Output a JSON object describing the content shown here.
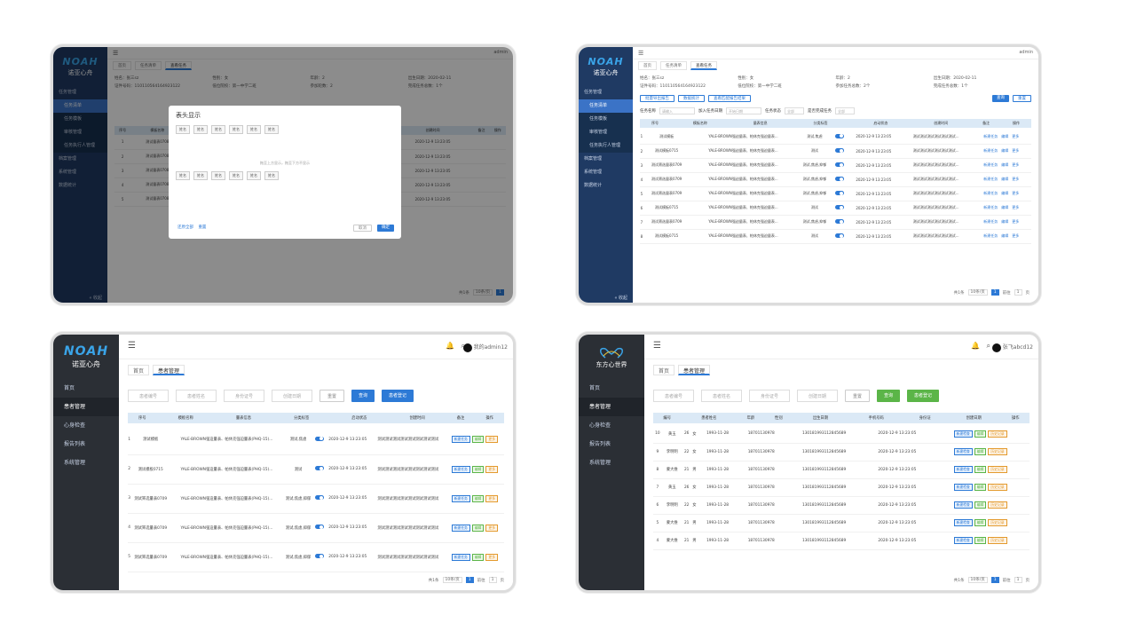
{
  "p1": {
    "brand": "NOAH",
    "brand_cn": "诺亚心舟",
    "menu": [
      "任务管理",
      "任务清单",
      "任务模板",
      "审核管理",
      "任务执行人管理",
      "档案管理",
      "系统管理",
      "数据统计"
    ],
    "collapse": "« 收起",
    "user": "admin",
    "tabs": [
      "首页",
      "任务清单",
      "查看任务"
    ],
    "info": [
      "姓名：张三sz",
      "性别：女",
      "年龄：2",
      "出生日期：2020-02-11",
      "证件类型：中国居民身份证",
      "证件号码：110110564164923122",
      "低位院校：第一中学二班",
      "参加轮数：2",
      "完成任务总数：1个",
      ""
    ],
    "dialog_title": "表头显示",
    "chip": "姓名",
    "hint": "拖至上方显示，拖至下方不显示",
    "dialog_left": [
      "还原全部",
      "重置"
    ],
    "dialog_cancel": "取消",
    "dialog_ok": "确定",
    "cols": [
      "序号",
      "模板名称",
      "量表信息",
      "分类标签",
      "启动状态",
      "创建时间",
      "备注",
      "操作"
    ],
    "row_tmpl": "测试量表0708",
    "scale": "YALE-BROWN强迫量表、帕休克强迫...",
    "tag": "测试",
    "date": "2020-12-9 13:23:05",
    "pager": [
      "共1条",
      "10条/页",
      "前往",
      "1",
      "页"
    ]
  },
  "p2": {
    "user": "admin",
    "tabs": [
      "首页",
      "任务清单",
      "查看任务"
    ],
    "info": [
      "姓名：张三sz",
      "性别：女",
      "年龄：2",
      "出生日期：2020-02-11",
      "证件类型：身份证",
      "证件号码：110110564164923122",
      "低位院校：第一中学二班",
      "参加任务总数：2个",
      "完成任务总数：1个",
      ""
    ],
    "actions": [
      "批量导出报告",
      "数据统计",
      "查看匹配报告结果"
    ],
    "filter_labels": [
      "任务名称",
      "加入任务日期",
      "加入任务日期",
      "任务状态",
      "是否完成任务"
    ],
    "filter_ph": [
      "请输入",
      "开始日期",
      "开始日期",
      "全部",
      "全部"
    ],
    "query": "查询",
    "reset": "重置",
    "cols": [
      "序号",
      "模板名称",
      "量表信息",
      "分类标签",
      "启动状态",
      "创建时间",
      "备注",
      "操作"
    ],
    "rows": [
      {
        "n": "1",
        "name": "测试模板",
        "tag": "测试,焦虑"
      },
      {
        "n": "2",
        "name": "测试模板0715",
        "tag": "测试"
      },
      {
        "n": "3",
        "name": "测试筛选量表0709",
        "tag": "测试,焦虑,抑郁"
      },
      {
        "n": "4",
        "name": "测试筛选量表0709",
        "tag": "测试,焦虑,抑郁"
      },
      {
        "n": "5",
        "name": "测试筛选量表0709",
        "tag": "测试,焦虑,抑郁"
      },
      {
        "n": "6",
        "name": "测试模板0715",
        "tag": "测试"
      },
      {
        "n": "7",
        "name": "测试筛选量表0709",
        "tag": "测试,焦虑,抑郁"
      },
      {
        "n": "8",
        "name": "测试模板0715",
        "tag": "测试"
      }
    ],
    "scale": "YALE-BROWN强迫量表、帕休克强迫量表...",
    "date": "2020-12-9 13:23:05",
    "remark": "测试测试测试测试测试测试...",
    "ops": [
      "新建任务",
      "编辑",
      "更多"
    ],
    "pager": [
      "共1条",
      "10条/页",
      "前往",
      "1",
      "页"
    ],
    "collapse": "« 收起"
  },
  "p3": {
    "brand": "NOAH",
    "brand_cn": "诺亚心舟",
    "menu": [
      "首页",
      "患者管理",
      "心身检查",
      "报告列表",
      "系统管理"
    ],
    "user": "我的admin12",
    "tabs": [
      "首页",
      "患者管理"
    ],
    "filters": [
      "患者编号",
      "患者姓名",
      "身份证号",
      "创建日期"
    ],
    "reset": "重置",
    "query": "查询",
    "register": "患者登记",
    "cols": [
      "序号",
      "模板名称",
      "量表信息",
      "分类标签",
      "启动状态",
      "创建时间",
      "备注",
      "操作"
    ],
    "rows": [
      {
        "n": "1",
        "name": "测试模板",
        "tag": "测试,焦虑"
      },
      {
        "n": "2",
        "name": "测试模板0715",
        "tag": "测试"
      },
      {
        "n": "3",
        "name": "测试筛选量表0709",
        "tag": "测试,焦虑,抑郁"
      },
      {
        "n": "4",
        "name": "测试筛选量表0709",
        "tag": "测试,焦虑,抑郁"
      },
      {
        "n": "5",
        "name": "测试筛选量表0709",
        "tag": "测试,焦虑,抑郁"
      }
    ],
    "scale": "YALE-BROWN强迫量表、帕休克强迫量表(PHQ-15)...",
    "date": "2020-12-9 13:23:05",
    "remark": "测试测试测试测试测试测试测试测试",
    "ops": [
      "新建任务",
      "编辑",
      "更多"
    ],
    "pager": [
      "共1条",
      "10条/页",
      "前往",
      "1",
      "页"
    ]
  },
  "p4": {
    "brand_cn": "东方心世界",
    "menu": [
      "首页",
      "患者管理",
      "心身检查",
      "报告列表",
      "系统管理"
    ],
    "user": "张飞abcd12",
    "tabs": [
      "首页",
      "患者管理"
    ],
    "filters": [
      "患者编号",
      "患者姓名",
      "身份证号",
      "创建日期"
    ],
    "reset": "重置",
    "query": "查询",
    "register": "患者登记",
    "cols": [
      "编号",
      "患者姓名",
      "年龄",
      "性别",
      "出生日期",
      "手机号码",
      "身份证",
      "创建日期",
      "操作"
    ],
    "rows": [
      {
        "n": "10",
        "name": "黄玉",
        "age": "26",
        "sex": "女"
      },
      {
        "n": "9",
        "name": "李明明",
        "age": "22",
        "sex": "女"
      },
      {
        "n": "8",
        "name": "蒙大维",
        "age": "21",
        "sex": "男"
      },
      {
        "n": "7",
        "name": "黄玉",
        "age": "26",
        "sex": "女"
      },
      {
        "n": "6",
        "name": "李明明",
        "age": "22",
        "sex": "女"
      },
      {
        "n": "5",
        "name": "蒙大维",
        "age": "21",
        "sex": "男"
      },
      {
        "n": "4",
        "name": "蒙大维",
        "age": "21",
        "sex": "男"
      }
    ],
    "birth": "1993-11-28",
    "phone": "18701130978",
    "idno": "130181993112845689",
    "created": "2020-12-9 13:23:05",
    "ops": [
      "新建检查",
      "编辑",
      "历史记录"
    ],
    "pager": [
      "共1条",
      "10条/页",
      "前往",
      "1",
      "页"
    ]
  }
}
